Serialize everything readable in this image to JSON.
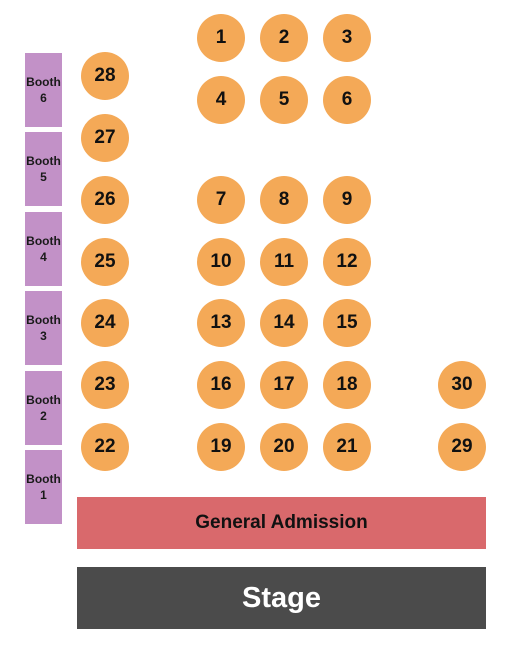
{
  "booths": [
    {
      "label": "Booth",
      "number": "6"
    },
    {
      "label": "Booth",
      "number": "5"
    },
    {
      "label": "Booth",
      "number": "4"
    },
    {
      "label": "Booth",
      "number": "3"
    },
    {
      "label": "Booth",
      "number": "2"
    },
    {
      "label": "Booth",
      "number": "1"
    }
  ],
  "tables": [
    "1",
    "2",
    "3",
    "4",
    "5",
    "6",
    "7",
    "8",
    "9",
    "10",
    "11",
    "12",
    "13",
    "14",
    "15",
    "16",
    "17",
    "18",
    "19",
    "20",
    "21",
    "22",
    "23",
    "24",
    "25",
    "26",
    "27",
    "28",
    "29",
    "30"
  ],
  "general_admission": "General Admission",
  "stage": "Stage",
  "colors": {
    "booth": "#c291c7",
    "table": "#f4a957",
    "general_admission": "#d9696c",
    "stage": "#4b4b4b"
  }
}
